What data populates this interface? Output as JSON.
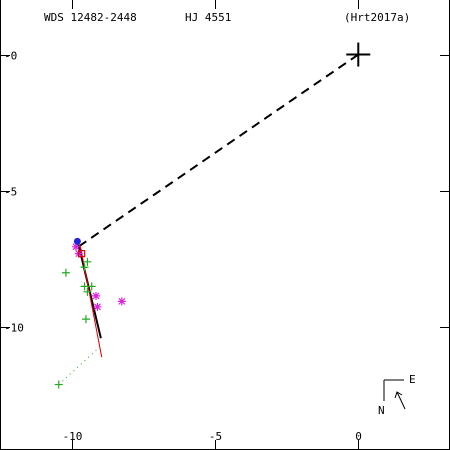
{
  "header": {
    "wds_id": "WDS 12482-2448",
    "discoverer": "HJ 4551",
    "reference": "(Hrt2017a)"
  },
  "compass": {
    "east_label": "E",
    "north_label": "N"
  },
  "chart_data": {
    "type": "scatter",
    "title": "",
    "xlabel": "",
    "ylabel": "",
    "xlim": [
      -12.5,
      3.2
    ],
    "ylim": [
      -14.5,
      2.0
    ],
    "x_ticks": [
      {
        "value": -10,
        "label": "-10"
      },
      {
        "value": -5,
        "label": "-5"
      },
      {
        "value": 0,
        "label": "0"
      }
    ],
    "y_ticks": [
      {
        "value": 0,
        "label": "-0"
      },
      {
        "value": -5,
        "label": "-5"
      },
      {
        "value": -10,
        "label": "-10"
      }
    ],
    "primary": {
      "x": 0,
      "y": 0
    },
    "separation_line": {
      "from": [
        0,
        0
      ],
      "to": [
        -9.7,
        -7.0
      ]
    },
    "orbit_black": {
      "from": [
        -9.8,
        -6.8
      ],
      "to": [
        -8.98,
        -10.4
      ]
    },
    "orbit_red": {
      "from": [
        -9.7,
        -7.0
      ],
      "to": [
        -8.95,
        -11.1
      ]
    },
    "residual_dotted_end": {
      "x": -9.1,
      "y": -10.8
    },
    "observations": [
      {
        "marker": "plus",
        "color": "#22aa22",
        "x": -10.45,
        "y": -12.1
      },
      {
        "marker": "plus",
        "color": "#22aa22",
        "x": -10.2,
        "y": -8.0
      },
      {
        "marker": "plus",
        "color": "#22aa22",
        "x": -9.55,
        "y": -7.8
      },
      {
        "marker": "plus",
        "color": "#22aa22",
        "x": -9.45,
        "y": -7.6
      },
      {
        "marker": "plus",
        "color": "#22aa22",
        "x": -9.55,
        "y": -8.5
      },
      {
        "marker": "plus",
        "color": "#22aa22",
        "x": -9.3,
        "y": -8.5
      },
      {
        "marker": "plus",
        "color": "#22aa22",
        "x": -9.45,
        "y": -8.7
      },
      {
        "marker": "plus",
        "color": "#22aa22",
        "x": -9.5,
        "y": -9.7
      },
      {
        "marker": "star",
        "color": "#dd22dd",
        "x": -9.85,
        "y": -7.05
      },
      {
        "marker": "star",
        "color": "#dd22dd",
        "x": -9.75,
        "y": -7.3
      },
      {
        "marker": "star",
        "color": "#dd22dd",
        "x": -9.15,
        "y": -8.85
      },
      {
        "marker": "star",
        "color": "#dd22dd",
        "x": -8.25,
        "y": -9.05
      },
      {
        "marker": "star",
        "color": "#dd22dd",
        "x": -9.1,
        "y": -9.25
      },
      {
        "marker": "dot",
        "color": "#2222dd",
        "x": -9.8,
        "y": -6.85
      },
      {
        "marker": "box",
        "color": "#dd0000",
        "x": -9.65,
        "y": -7.3
      }
    ]
  }
}
